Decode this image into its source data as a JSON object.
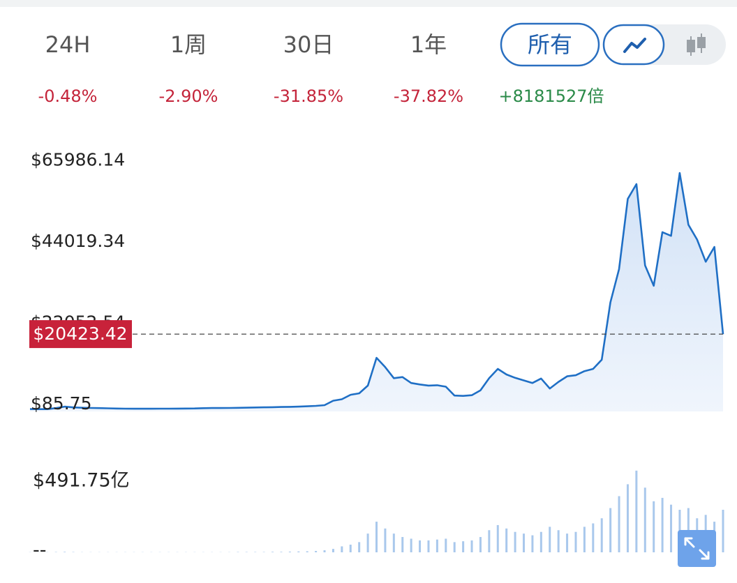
{
  "tabs": [
    {
      "label": "24H",
      "change": "-0.48%"
    },
    {
      "label": "1周",
      "change": "-2.90%"
    },
    {
      "label": "30日",
      "change": "-31.85%"
    },
    {
      "label": "1年",
      "change": "-37.82%"
    },
    {
      "label": "所有",
      "change": "+8181527倍"
    }
  ],
  "chart_data": [
    {
      "type": "area",
      "color": "#1f6fc5",
      "fill": "#dbe8f8",
      "ylim": [
        -500,
        71000
      ],
      "yticks": [
        {
          "value": 65986.14,
          "label": "$65986.14"
        },
        {
          "value": 44019.34,
          "label": "$44019.34"
        },
        {
          "value": 22052.54,
          "label": "$22052.54"
        },
        {
          "value": 85.75,
          "label": "$85.75"
        }
      ],
      "grid": false,
      "current_price": {
        "value": 20423.42,
        "label": "$20423.42"
      },
      "values": [
        150,
        120,
        130,
        400,
        800,
        600,
        500,
        450,
        400,
        350,
        300,
        250,
        240,
        230,
        240,
        250,
        260,
        280,
        300,
        320,
        380,
        420,
        430,
        450,
        480,
        520,
        580,
        620,
        650,
        700,
        750,
        800,
        900,
        1000,
        1200,
        2400,
        2800,
        4000,
        4400,
        6500,
        14000,
        11500,
        8500,
        8800,
        7200,
        6800,
        6500,
        6600,
        6200,
        3800,
        3700,
        3900,
        5200,
        8500,
        11000,
        9500,
        8600,
        7900,
        7200,
        8400,
        5700,
        7500,
        9000,
        9300,
        10400,
        11000,
        13500,
        29000,
        38000,
        57000,
        61000,
        39000,
        33500,
        48000,
        47000,
        64000,
        50000,
        46000,
        40000,
        44000,
        20400
      ]
    },
    {
      "type": "bar",
      "color": "#a9c8ec",
      "ylim": [
        0,
        491.75
      ],
      "yticks": [
        {
          "value": 491.75,
          "label": "$491.75亿"
        },
        {
          "value": 0,
          "label": "--"
        }
      ],
      "grid": false,
      "values": [
        1,
        1,
        1,
        2,
        3,
        2,
        1,
        1,
        1,
        1,
        1,
        1,
        1,
        1,
        1,
        1,
        1,
        1,
        1,
        1,
        1,
        1,
        1,
        1,
        2,
        2,
        2,
        2,
        3,
        3,
        4,
        5,
        6,
        8,
        12,
        20,
        35,
        45,
        60,
        110,
        180,
        140,
        110,
        90,
        80,
        70,
        70,
        75,
        80,
        60,
        65,
        70,
        90,
        130,
        160,
        140,
        120,
        110,
        100,
        120,
        150,
        130,
        110,
        120,
        150,
        170,
        200,
        260,
        330,
        400,
        480,
        380,
        300,
        320,
        280,
        250,
        260,
        200,
        220,
        180,
        250
      ]
    }
  ]
}
